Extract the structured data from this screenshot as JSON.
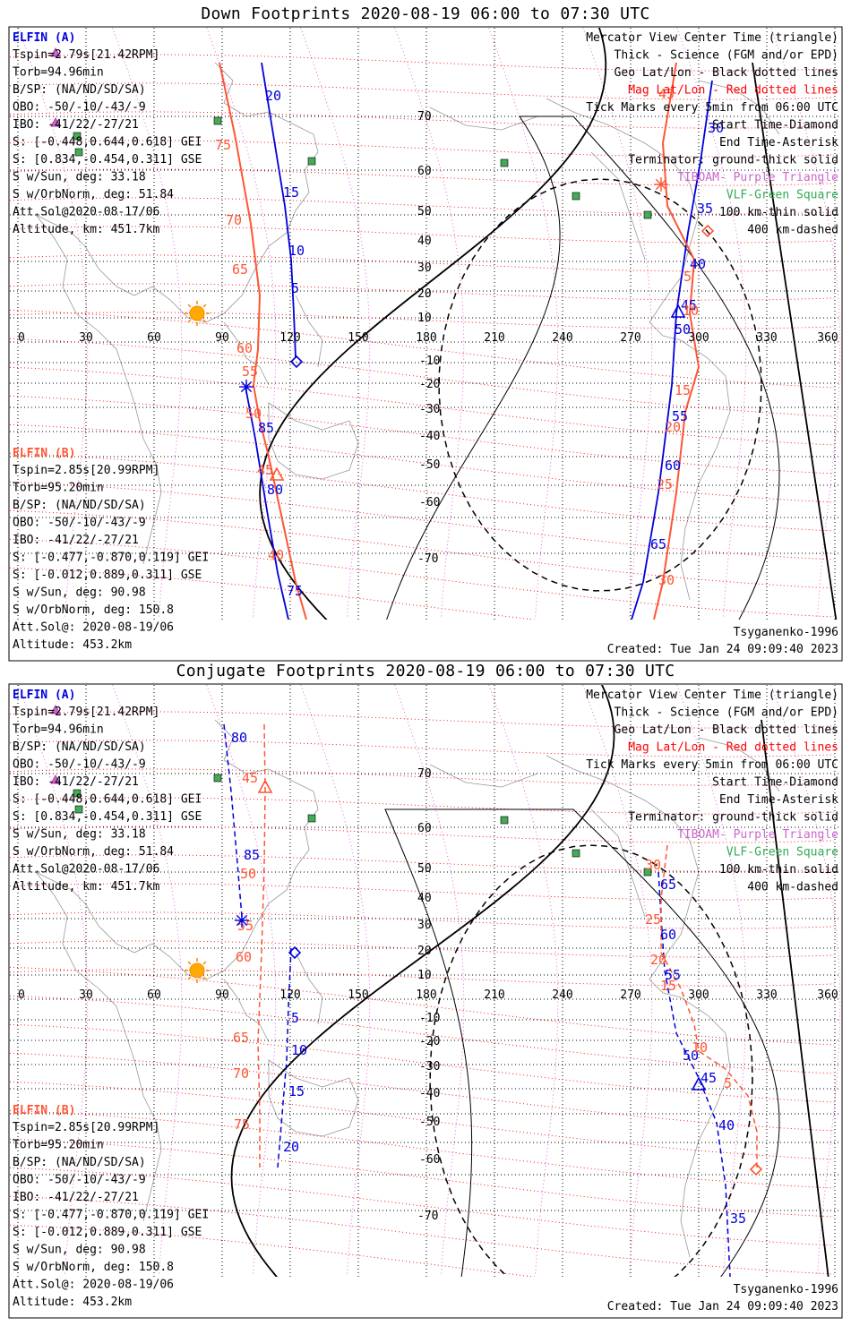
{
  "panels": [
    {
      "id": "down",
      "title": "Down Footprints 2020-08-19 06:00 to 07:30 UTC",
      "elfin_a": {
        "name": "ELFIN (A)",
        "lines": [
          "Tspin=2.79s[21.42RPM]",
          "Torb=94.96min",
          "B/SP: (NA/ND/SD/SA)",
          "OBO: -50/-10/-43/-9",
          "IBO: -41/22/-27/21",
          "S: [-0.448,0.644,0.618] GEI",
          "S: [0.834,-0.454,0.311] GSE",
          "S w/Sun, deg: 33.18",
          "S w/OrbNorm, deg: 51.84",
          "Att.Sol@2020-08-17/06",
          "Altitude, km: 451.7km"
        ]
      },
      "elfin_b": {
        "name": "ELFIN (B)",
        "lines": [
          "Tspin=2.85s[20.99RPM]",
          "Torb=95.20min",
          "B/SP: (NA/ND/SD/SA)",
          "OBO: -50/-10/-43/-9",
          "IBO: -41/22/-27/21",
          "S: [-0.477,-0.870,0.119] GEI",
          "S: [-0.012,0.889,0.311] GSE",
          "S w/Sun, deg: 90.98",
          "S w/OrbNorm, deg: 150.8",
          "Att.Sol@: 2020-08-19/06",
          "Altitude: 453.2km"
        ]
      },
      "legend": [
        {
          "text": "Mercator View Center Time (triangle)",
          "color": "#000000"
        },
        {
          "text": "Thick - Science (FGM and/or EPD)",
          "color": "#000000"
        },
        {
          "text": "Geo Lat/Lon - Black dotted lines",
          "color": "#000000"
        },
        {
          "text": "Mag Lat/Lon - Red dotted lines",
          "color": "#ff0000"
        },
        {
          "text": "Tick Marks every 5min from 06:00 UTC",
          "color": "#000000"
        },
        {
          "text": "Start Time-Diamond",
          "color": "#000000"
        },
        {
          "text": "End Time-Asterisk",
          "color": "#000000"
        },
        {
          "text": "Terminator: ground-thick solid",
          "color": "#000000"
        },
        {
          "text": "TIBOAM- Purple Triangle",
          "color": "#cc66cc"
        },
        {
          "text": "VLF-Green Square",
          "color": "#33aa55"
        },
        {
          "text": "100 km-thin solid",
          "color": "#000000"
        },
        {
          "text": "400 km-dashed",
          "color": "#000000"
        }
      ],
      "model": "Tsyganenko-1996",
      "created": "Created: Tue Jan 24 09:09:40 2023",
      "lat_labels": [
        "70",
        "60",
        "50",
        "40",
        "30",
        "20",
        "10",
        "-10",
        "-20",
        "-30",
        "-40",
        "-50",
        "-60",
        "-70"
      ],
      "lon_labels": [
        "0",
        "30",
        "60",
        "90",
        "120",
        "150",
        "180",
        "210",
        "240",
        "270",
        "300",
        "330",
        "360"
      ],
      "track_a_labels": [
        "20",
        "15",
        "10",
        "5",
        "85",
        "80",
        "75",
        "30",
        "35",
        "40",
        "45",
        "50",
        "55",
        "60",
        "65"
      ],
      "track_b_labels": [
        "75",
        "70",
        "65",
        "60",
        "55",
        "50",
        "45",
        "40",
        "15",
        "20",
        "25",
        "30",
        "45",
        "5",
        "10"
      ]
    },
    {
      "id": "conj",
      "title": "Conjugate Footprints 2020-08-19 06:00 to 07:30 UTC",
      "elfin_a": {
        "name": "ELFIN (A)",
        "lines": [
          "Tspin=2.79s[21.42RPM]",
          "Torb=94.96min",
          "B/SP: (NA/ND/SD/SA)",
          "OBO: -50/-10/-43/-9",
          "IBO: -41/22/-27/21",
          "S: [-0.448,0.644,0.618] GEI",
          "S: [0.834,-0.454,0.311] GSE",
          "S w/Sun, deg: 33.18",
          "S w/OrbNorm, deg: 51.84",
          "Att.Sol@2020-08-17/06",
          "Altitude, km: 451.7km"
        ]
      },
      "elfin_b": {
        "name": "ELFIN (B)",
        "lines": [
          "Tspin=2.85s[20.99RPM]",
          "Torb=95.20min",
          "B/SP: (NA/ND/SD/SA)",
          "OBO: -50/-10/-43/-9",
          "IBO: -41/22/-27/21",
          "S: [-0.477,-0.870,0.119] GEI",
          "S: [-0.012,0.889,0.311] GSE",
          "S w/Sun, deg: 90.98",
          "S w/OrbNorm, deg: 150.8",
          "Att.Sol@: 2020-08-19/06",
          "Altitude: 453.2km"
        ]
      },
      "legend": [
        {
          "text": "Mercator View Center Time (triangle)",
          "color": "#000000"
        },
        {
          "text": "Thick - Science (FGM and/or EPD)",
          "color": "#000000"
        },
        {
          "text": "Geo Lat/Lon - Black dotted lines",
          "color": "#000000"
        },
        {
          "text": "Mag Lat/Lon - Red dotted lines",
          "color": "#ff0000"
        },
        {
          "text": "Tick Marks every 5min from 06:00 UTC",
          "color": "#000000"
        },
        {
          "text": "Start Time-Diamond",
          "color": "#000000"
        },
        {
          "text": "End Time-Asterisk",
          "color": "#000000"
        },
        {
          "text": "Terminator: ground-thick solid",
          "color": "#000000"
        },
        {
          "text": "TIBOAM- Purple Triangle",
          "color": "#cc66cc"
        },
        {
          "text": "VLF-Green Square",
          "color": "#33aa55"
        },
        {
          "text": "100 km-thin solid",
          "color": "#000000"
        },
        {
          "text": "400 km-dashed",
          "color": "#000000"
        }
      ],
      "model": "Tsyganenko-1996",
      "created": "Created: Tue Jan 24 09:09:40 2023",
      "lat_labels": [
        "70",
        "60",
        "50",
        "40",
        "30",
        "20",
        "10",
        "-10",
        "-20",
        "-30",
        "-40",
        "-50",
        "-60",
        "-70"
      ],
      "lon_labels": [
        "0",
        "30",
        "60",
        "90",
        "120",
        "150",
        "180",
        "210",
        "240",
        "270",
        "300",
        "330",
        "360"
      ],
      "track_a_labels": [
        "80",
        "85",
        "5",
        "10",
        "15",
        "20",
        "65",
        "60",
        "55",
        "50",
        "45",
        "40",
        "35"
      ],
      "track_b_labels": [
        "45",
        "50",
        "55",
        "60",
        "65",
        "70",
        "75",
        "30",
        "25",
        "20",
        "15",
        "10",
        "5"
      ]
    }
  ]
}
